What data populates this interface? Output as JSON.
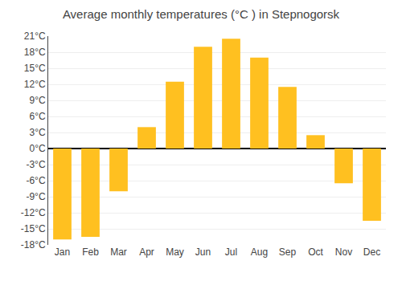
{
  "chart_data": {
    "type": "bar",
    "title": "Average monthly temperatures (°C ) in Stepnogorsk",
    "categories": [
      "Jan",
      "Feb",
      "Mar",
      "Apr",
      "May",
      "Jun",
      "Jul",
      "Aug",
      "Sep",
      "Oct",
      "Nov",
      "Dec"
    ],
    "values": [
      -17,
      -16.5,
      -8,
      4,
      12.5,
      19,
      20.5,
      17,
      11.5,
      2.5,
      -6.5,
      -13.5
    ],
    "color": "#FFC020",
    "ylim": [
      -18,
      21
    ],
    "yticks": [
      {
        "value": -18,
        "label": "-18°C"
      },
      {
        "value": -15,
        "label": "-15°C"
      },
      {
        "value": -12,
        "label": "-12°C"
      },
      {
        "value": -9,
        "label": "-9°C"
      },
      {
        "value": -6,
        "label": "-6°C"
      },
      {
        "value": -3,
        "label": "-3°C"
      },
      {
        "value": 0,
        "label": "0°C"
      },
      {
        "value": 3,
        "label": "3°C"
      },
      {
        "value": 6,
        "label": "6°C"
      },
      {
        "value": 9,
        "label": "9°C"
      },
      {
        "value": 12,
        "label": "12°C"
      },
      {
        "value": 15,
        "label": "15°C"
      },
      {
        "value": 18,
        "label": "18°C"
      },
      {
        "value": 21,
        "label": "21°C"
      }
    ],
    "grid": true
  }
}
